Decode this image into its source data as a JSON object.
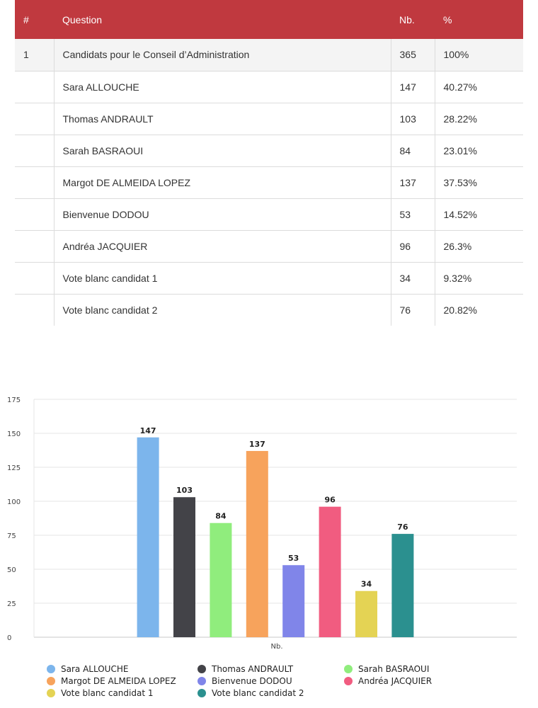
{
  "table": {
    "headers": [
      "#",
      "Question",
      "Nb.",
      "%"
    ],
    "rows": [
      [
        "1",
        "Candidats pour le Conseil d’Administration",
        "365",
        "100%"
      ],
      [
        "",
        "Sara ALLOUCHE",
        "147",
        "40.27%"
      ],
      [
        "",
        "Thomas ANDRAULT",
        "103",
        "28.22%"
      ],
      [
        "",
        "Sarah BASRAOUI",
        "84",
        "23.01%"
      ],
      [
        "",
        "Margot DE ALMEIDA LOPEZ",
        "137",
        "37.53%"
      ],
      [
        "",
        "Bienvenue DODOU",
        "53",
        "14.52%"
      ],
      [
        "",
        "Andréa JACQUIER",
        "96",
        "26.3%"
      ],
      [
        "",
        "Vote blanc candidat 1",
        "34",
        "9.32%"
      ],
      [
        "",
        "Vote blanc candidat 2",
        "76",
        "20.82%"
      ]
    ]
  },
  "chart_data": {
    "type": "bar",
    "categories": [
      "Nb."
    ],
    "xlabel": "Nb.",
    "ylim": [
      0,
      175
    ],
    "yticks": [
      0,
      25,
      50,
      75,
      100,
      125,
      150,
      175
    ],
    "grid": true,
    "legend_position": "bottom",
    "series": [
      {
        "name": "Sara ALLOUCHE",
        "values": [
          147
        ],
        "color": "#7cb5ec"
      },
      {
        "name": "Thomas ANDRAULT",
        "values": [
          103
        ],
        "color": "#434348"
      },
      {
        "name": "Sarah BASRAOUI",
        "values": [
          84
        ],
        "color": "#90ed7d"
      },
      {
        "name": "Margot DE ALMEIDA LOPEZ",
        "values": [
          137
        ],
        "color": "#f7a35c"
      },
      {
        "name": "Bienvenue DODOU",
        "values": [
          53
        ],
        "color": "#8085e9"
      },
      {
        "name": "Andréa JACQUIER",
        "values": [
          96
        ],
        "color": "#f15c80"
      },
      {
        "name": "Vote blanc candidat 1",
        "values": [
          34
        ],
        "color": "#e4d354"
      },
      {
        "name": "Vote blanc candidat 2",
        "values": [
          76
        ],
        "color": "#2b908f"
      }
    ]
  }
}
